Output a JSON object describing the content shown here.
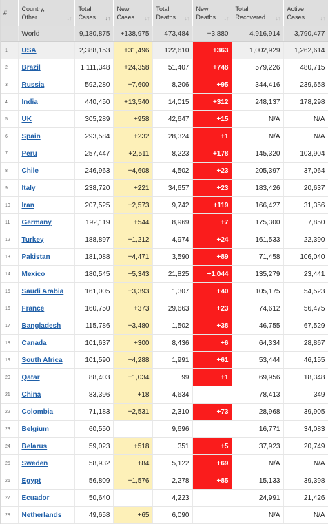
{
  "columns": [
    {
      "label": "#",
      "sortable": false
    },
    {
      "label": "Country, Other",
      "sortable": true
    },
    {
      "label": "Total Cases",
      "sortable": true
    },
    {
      "label": "New Cases",
      "sortable": true
    },
    {
      "label": "Total Deaths",
      "sortable": true
    },
    {
      "label": "New Deaths",
      "sortable": true
    },
    {
      "label": "Total Recovered",
      "sortable": true
    },
    {
      "label": "Active Cases",
      "sortable": true
    }
  ],
  "header_lines": [
    [
      "#"
    ],
    [
      "Country,",
      "Other"
    ],
    [
      "Total",
      "Cases"
    ],
    [
      "New",
      "Cases"
    ],
    [
      "Total",
      "Deaths"
    ],
    [
      "New",
      "Deaths"
    ],
    [
      "Total",
      "Recovered"
    ],
    [
      "Active",
      "Cases"
    ]
  ],
  "world": {
    "name": "World",
    "total_cases": "9,180,875",
    "new_cases": "+138,975",
    "total_deaths": "473,484",
    "new_deaths": "+3,880",
    "total_recovered": "4,916,914",
    "active_cases": "3,790,477"
  },
  "rows": [
    {
      "idx": "1",
      "country": "USA",
      "total_cases": "2,388,153",
      "new_cases": "+31,496",
      "total_deaths": "122,610",
      "new_deaths": "+363",
      "total_recovered": "1,002,929",
      "active_cases": "1,262,614"
    },
    {
      "idx": "2",
      "country": "Brazil",
      "total_cases": "1,111,348",
      "new_cases": "+24,358",
      "total_deaths": "51,407",
      "new_deaths": "+748",
      "total_recovered": "579,226",
      "active_cases": "480,715"
    },
    {
      "idx": "3",
      "country": "Russia",
      "total_cases": "592,280",
      "new_cases": "+7,600",
      "total_deaths": "8,206",
      "new_deaths": "+95",
      "total_recovered": "344,416",
      "active_cases": "239,658"
    },
    {
      "idx": "4",
      "country": "India",
      "total_cases": "440,450",
      "new_cases": "+13,540",
      "total_deaths": "14,015",
      "new_deaths": "+312",
      "total_recovered": "248,137",
      "active_cases": "178,298"
    },
    {
      "idx": "5",
      "country": "UK",
      "total_cases": "305,289",
      "new_cases": "+958",
      "total_deaths": "42,647",
      "new_deaths": "+15",
      "total_recovered": "N/A",
      "active_cases": "N/A"
    },
    {
      "idx": "6",
      "country": "Spain",
      "total_cases": "293,584",
      "new_cases": "+232",
      "total_deaths": "28,324",
      "new_deaths": "+1",
      "total_recovered": "N/A",
      "active_cases": "N/A"
    },
    {
      "idx": "7",
      "country": "Peru",
      "total_cases": "257,447",
      "new_cases": "+2,511",
      "total_deaths": "8,223",
      "new_deaths": "+178",
      "total_recovered": "145,320",
      "active_cases": "103,904"
    },
    {
      "idx": "8",
      "country": "Chile",
      "total_cases": "246,963",
      "new_cases": "+4,608",
      "total_deaths": "4,502",
      "new_deaths": "+23",
      "total_recovered": "205,397",
      "active_cases": "37,064"
    },
    {
      "idx": "9",
      "country": "Italy",
      "total_cases": "238,720",
      "new_cases": "+221",
      "total_deaths": "34,657",
      "new_deaths": "+23",
      "total_recovered": "183,426",
      "active_cases": "20,637"
    },
    {
      "idx": "10",
      "country": "Iran",
      "total_cases": "207,525",
      "new_cases": "+2,573",
      "total_deaths": "9,742",
      "new_deaths": "+119",
      "total_recovered": "166,427",
      "active_cases": "31,356"
    },
    {
      "idx": "11",
      "country": "Germany",
      "total_cases": "192,119",
      "new_cases": "+544",
      "total_deaths": "8,969",
      "new_deaths": "+7",
      "total_recovered": "175,300",
      "active_cases": "7,850"
    },
    {
      "idx": "12",
      "country": "Turkey",
      "total_cases": "188,897",
      "new_cases": "+1,212",
      "total_deaths": "4,974",
      "new_deaths": "+24",
      "total_recovered": "161,533",
      "active_cases": "22,390"
    },
    {
      "idx": "13",
      "country": "Pakistan",
      "total_cases": "181,088",
      "new_cases": "+4,471",
      "total_deaths": "3,590",
      "new_deaths": "+89",
      "total_recovered": "71,458",
      "active_cases": "106,040"
    },
    {
      "idx": "14",
      "country": "Mexico",
      "total_cases": "180,545",
      "new_cases": "+5,343",
      "total_deaths": "21,825",
      "new_deaths": "+1,044",
      "total_recovered": "135,279",
      "active_cases": "23,441"
    },
    {
      "idx": "15",
      "country": "Saudi Arabia",
      "total_cases": "161,005",
      "new_cases": "+3,393",
      "total_deaths": "1,307",
      "new_deaths": "+40",
      "total_recovered": "105,175",
      "active_cases": "54,523"
    },
    {
      "idx": "16",
      "country": "France",
      "total_cases": "160,750",
      "new_cases": "+373",
      "total_deaths": "29,663",
      "new_deaths": "+23",
      "total_recovered": "74,612",
      "active_cases": "56,475"
    },
    {
      "idx": "17",
      "country": "Bangladesh",
      "total_cases": "115,786",
      "new_cases": "+3,480",
      "total_deaths": "1,502",
      "new_deaths": "+38",
      "total_recovered": "46,755",
      "active_cases": "67,529"
    },
    {
      "idx": "18",
      "country": "Canada",
      "total_cases": "101,637",
      "new_cases": "+300",
      "total_deaths": "8,436",
      "new_deaths": "+6",
      "total_recovered": "64,334",
      "active_cases": "28,867"
    },
    {
      "idx": "19",
      "country": "South Africa",
      "total_cases": "101,590",
      "new_cases": "+4,288",
      "total_deaths": "1,991",
      "new_deaths": "+61",
      "total_recovered": "53,444",
      "active_cases": "46,155"
    },
    {
      "idx": "20",
      "country": "Qatar",
      "total_cases": "88,403",
      "new_cases": "+1,034",
      "total_deaths": "99",
      "new_deaths": "+1",
      "total_recovered": "69,956",
      "active_cases": "18,348"
    },
    {
      "idx": "21",
      "country": "China",
      "total_cases": "83,396",
      "new_cases": "+18",
      "total_deaths": "4,634",
      "new_deaths": "",
      "total_recovered": "78,413",
      "active_cases": "349"
    },
    {
      "idx": "22",
      "country": "Colombia",
      "total_cases": "71,183",
      "new_cases": "+2,531",
      "total_deaths": "2,310",
      "new_deaths": "+73",
      "total_recovered": "28,968",
      "active_cases": "39,905"
    },
    {
      "idx": "23",
      "country": "Belgium",
      "total_cases": "60,550",
      "new_cases": "",
      "total_deaths": "9,696",
      "new_deaths": "",
      "total_recovered": "16,771",
      "active_cases": "34,083"
    },
    {
      "idx": "24",
      "country": "Belarus",
      "total_cases": "59,023",
      "new_cases": "+518",
      "total_deaths": "351",
      "new_deaths": "+5",
      "total_recovered": "37,923",
      "active_cases": "20,749"
    },
    {
      "idx": "25",
      "country": "Sweden",
      "total_cases": "58,932",
      "new_cases": "+84",
      "total_deaths": "5,122",
      "new_deaths": "+69",
      "total_recovered": "N/A",
      "active_cases": "N/A"
    },
    {
      "idx": "26",
      "country": "Egypt",
      "total_cases": "56,809",
      "new_cases": "+1,576",
      "total_deaths": "2,278",
      "new_deaths": "+85",
      "total_recovered": "15,133",
      "active_cases": "39,398"
    },
    {
      "idx": "27",
      "country": "Ecuador",
      "total_cases": "50,640",
      "new_cases": "",
      "total_deaths": "4,223",
      "new_deaths": "",
      "total_recovered": "24,991",
      "active_cases": "21,426"
    },
    {
      "idx": "28",
      "country": "Netherlands",
      "total_cases": "49,658",
      "new_cases": "+65",
      "total_deaths": "6,090",
      "new_deaths": "",
      "total_recovered": "N/A",
      "active_cases": "N/A"
    }
  ],
  "icons": {
    "sort": "sort-arrows-icon"
  },
  "colors": {
    "new_cases_highlight": "#fdf0b8",
    "new_deaths_highlight": "#fa1c1c",
    "link": "#1f5fa8",
    "header_bg": "#dedede"
  }
}
